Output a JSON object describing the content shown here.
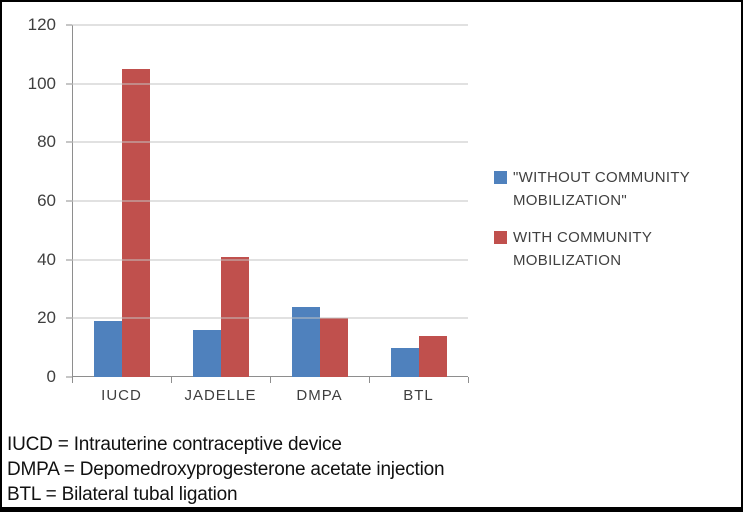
{
  "chart_data": {
    "type": "bar",
    "categories": [
      "IUCD",
      "JADELLE",
      "DMPA",
      "BTL"
    ],
    "series": [
      {
        "name": "\"WITHOUT COMMUNITY MOBILIZATION\"",
        "color": "#4F81BD",
        "values": [
          19,
          16,
          24,
          10
        ]
      },
      {
        "name": "WITH COMMUNITY MOBILIZATION",
        "color": "#C0504D",
        "values": [
          105,
          41,
          20,
          14
        ]
      }
    ],
    "title": "",
    "xlabel": "",
    "ylabel": "",
    "ylim": [
      0,
      120
    ],
    "yticks": [
      0,
      20,
      40,
      60,
      80,
      100,
      120
    ],
    "grid": true,
    "legend_position": "right",
    "colors": {
      "gridline": "#c3c3c3",
      "axis": "#8e8e8e",
      "tick_text": "#3f3f3f",
      "legend_text": "#404040"
    }
  },
  "figure": {
    "footnotes": [
      "IUCD = Intrauterine contraceptive device",
      "DMPA = Depomedroxyprogesterone acetate injection",
      "BTL = Bilateral tubal ligation"
    ]
  }
}
